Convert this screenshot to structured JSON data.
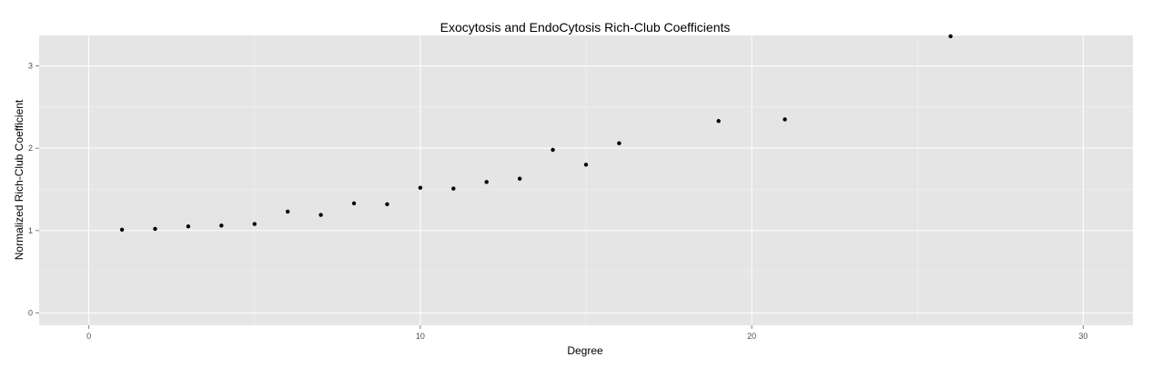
{
  "chart_data": {
    "type": "scatter",
    "title": "Exocytosis and EndoCytosis Rich-Club Coefficients",
    "xlabel": "Degree",
    "ylabel": "Normalized Rich-Club Coefficient",
    "xlim": [
      -1.5,
      31.5
    ],
    "ylim": [
      -0.15,
      3.37
    ],
    "xticks": [
      0,
      10,
      20,
      30
    ],
    "yticks": [
      0,
      1,
      2,
      3
    ],
    "grid": true,
    "legend": "none",
    "colors": {
      "panel": "#e5e5e5",
      "grid": "#ffffff",
      "point": "#000000"
    },
    "x": [
      1,
      2,
      3,
      4,
      5,
      6,
      7,
      8,
      9,
      10,
      11,
      12,
      13,
      14,
      15,
      16,
      19,
      21,
      26
    ],
    "y": [
      1.01,
      1.02,
      1.05,
      1.06,
      1.08,
      1.23,
      1.19,
      1.33,
      1.32,
      1.52,
      1.51,
      1.59,
      1.63,
      1.98,
      1.8,
      2.06,
      2.33,
      2.35,
      3.36
    ]
  }
}
